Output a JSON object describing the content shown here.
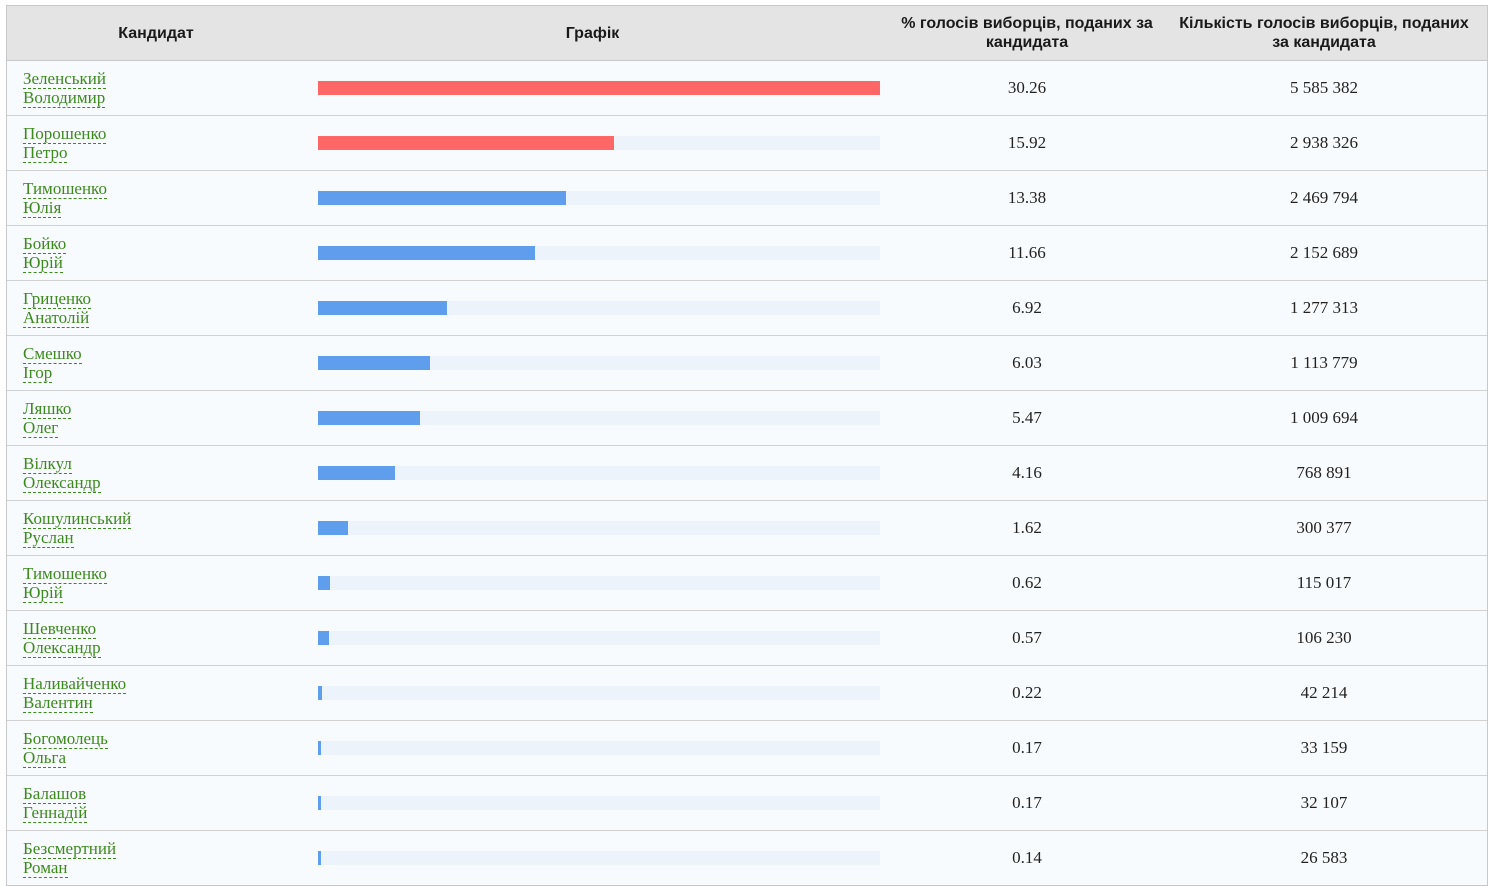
{
  "header": {
    "candidate": "Кандидат",
    "chart": "Графік",
    "percent": "% голосів виборців, поданих за кандидата",
    "votes": "Кількість голосів виборців, поданих за кандидата"
  },
  "colors": {
    "leader": "#ff6666",
    "other": "#5f9ded",
    "track": "#edf3fb",
    "link": "#3c8a1e"
  },
  "chart_data": {
    "type": "bar",
    "max_value": 30.26,
    "rows": [
      {
        "surname": "Зеленський",
        "given": "Володимир",
        "percent": "30.26",
        "value": 30.26,
        "votes": "5 585 382",
        "leader": true
      },
      {
        "surname": "Порошенко",
        "given": "Петро",
        "percent": "15.92",
        "value": 15.92,
        "votes": "2 938 326",
        "leader": true
      },
      {
        "surname": "Тимошенко",
        "given": "Юлія",
        "percent": "13.38",
        "value": 13.38,
        "votes": "2 469 794",
        "leader": false
      },
      {
        "surname": "Бойко",
        "given": "Юрій",
        "percent": "11.66",
        "value": 11.66,
        "votes": "2 152 689",
        "leader": false
      },
      {
        "surname": "Гриценко",
        "given": "Анатолій",
        "percent": "6.92",
        "value": 6.92,
        "votes": "1 277 313",
        "leader": false
      },
      {
        "surname": "Смешко",
        "given": "Ігор",
        "percent": "6.03",
        "value": 6.03,
        "votes": "1 113 779",
        "leader": false
      },
      {
        "surname": "Ляшко",
        "given": "Олег",
        "percent": "5.47",
        "value": 5.47,
        "votes": "1 009 694",
        "leader": false
      },
      {
        "surname": "Вілкул",
        "given": "Олександр",
        "percent": "4.16",
        "value": 4.16,
        "votes": "768 891",
        "leader": false
      },
      {
        "surname": "Кошулинський",
        "given": "Руслан",
        "percent": "1.62",
        "value": 1.62,
        "votes": "300 377",
        "leader": false
      },
      {
        "surname": "Тимошенко",
        "given": "Юрій",
        "percent": "0.62",
        "value": 0.62,
        "votes": "115 017",
        "leader": false
      },
      {
        "surname": "Шевченко",
        "given": "Олександр",
        "percent": "0.57",
        "value": 0.57,
        "votes": "106 230",
        "leader": false
      },
      {
        "surname": "Наливайченко",
        "given": "Валентин",
        "percent": "0.22",
        "value": 0.22,
        "votes": "42 214",
        "leader": false
      },
      {
        "surname": "Богомолець",
        "given": "Ольга",
        "percent": "0.17",
        "value": 0.17,
        "votes": "33 159",
        "leader": false
      },
      {
        "surname": "Балашов",
        "given": "Геннадій",
        "percent": "0.17",
        "value": 0.17,
        "votes": "32 107",
        "leader": false
      },
      {
        "surname": "Безсмертний",
        "given": "Роман",
        "percent": "0.14",
        "value": 0.14,
        "votes": "26 583",
        "leader": false
      }
    ]
  }
}
